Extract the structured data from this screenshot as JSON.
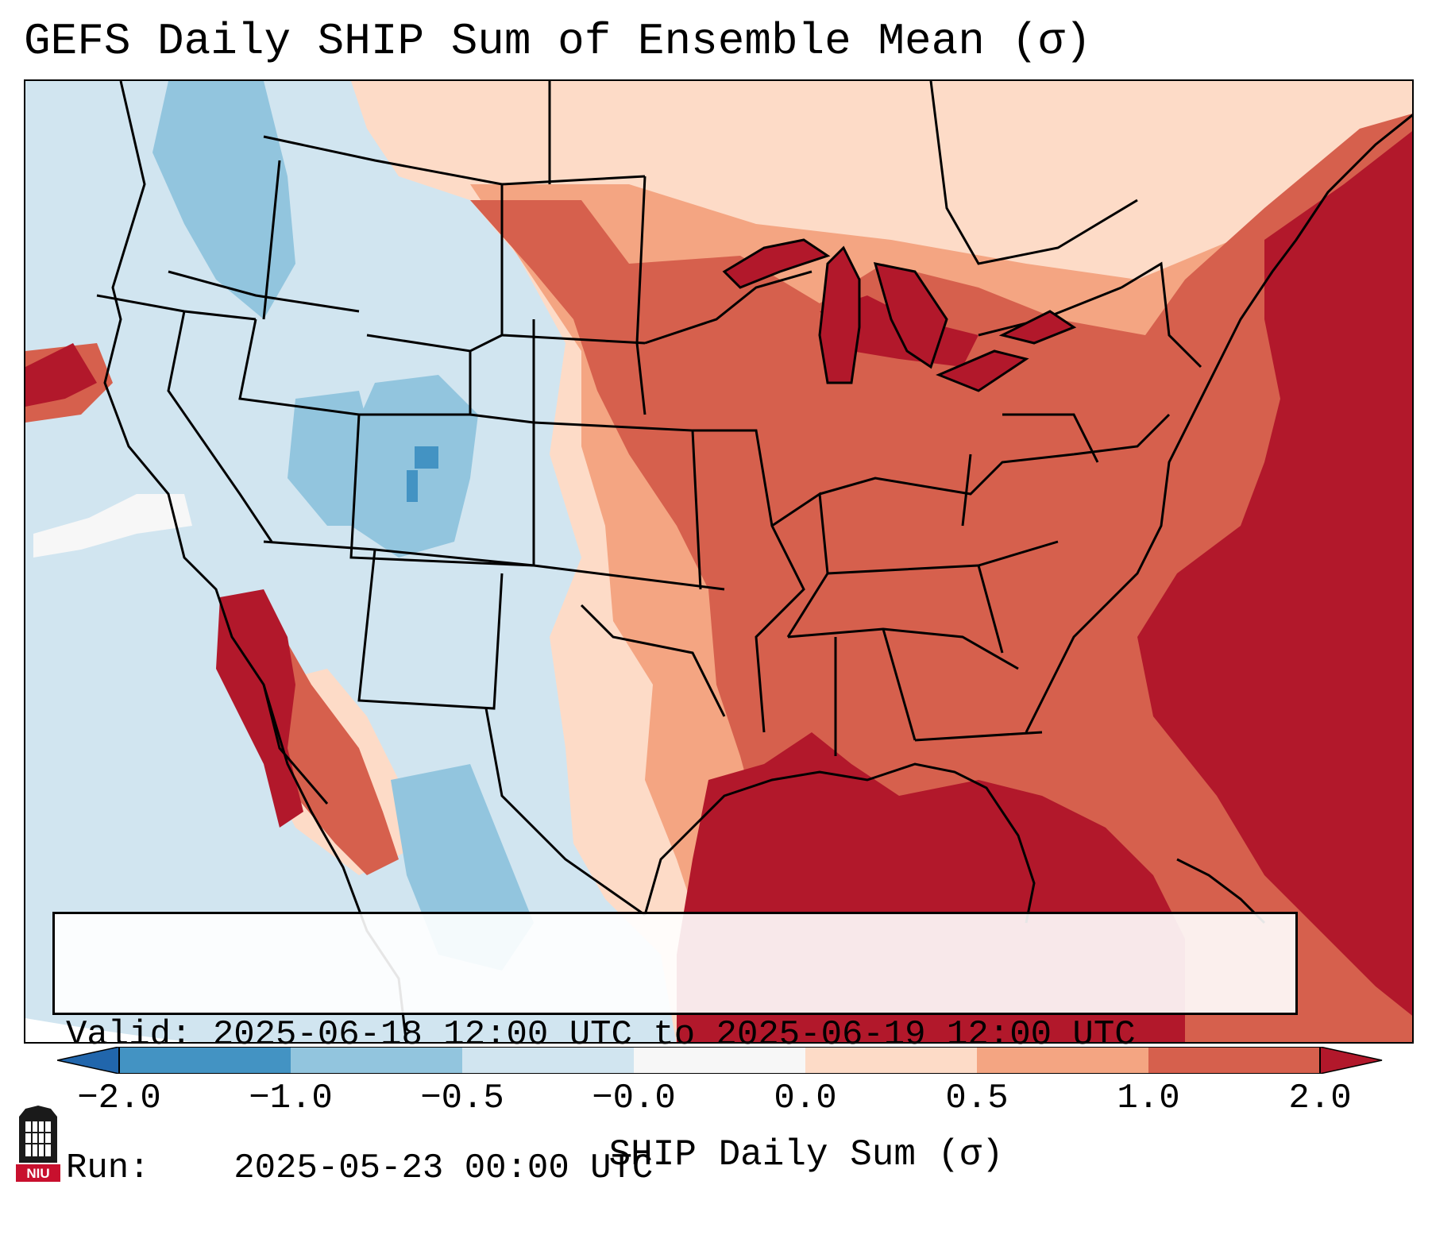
{
  "title": "GEFS Daily SHIP Sum of Ensemble Mean (σ)",
  "info": {
    "valid_label": "Valid:",
    "valid_value": "2025-06-18 12:00 UTC to 2025-06-19 12:00 UTC",
    "run_label": "Run:",
    "run_value": "2025-05-23 00:00 UTC"
  },
  "colorbar": {
    "title": "SHIP Daily Sum (σ)",
    "ticks": [
      "−2.0",
      "−1.0",
      "−0.5",
      "−0.0",
      "0.0",
      "0.5",
      "1.0",
      "2.0"
    ],
    "bins": [
      {
        "range": "< -2.0",
        "color": "#2166ac"
      },
      {
        "range": "-2.0 to -1.0",
        "color": "#4393c3"
      },
      {
        "range": "-1.0 to -0.5",
        "color": "#92c5de"
      },
      {
        "range": "-0.5 to -0.0",
        "color": "#d1e5f0"
      },
      {
        "range": "-0.0 to 0.0",
        "color": "#f7f7f7"
      },
      {
        "range": "0.0 to 0.5",
        "color": "#fddbc7"
      },
      {
        "range": "0.5 to 1.0",
        "color": "#f4a582"
      },
      {
        "range": "1.0 to 2.0",
        "color": "#d6604d"
      },
      {
        "range": "> 2.0",
        "color": "#b2182b"
      }
    ]
  },
  "logo": {
    "text": "NIU",
    "color": "#c8102e"
  }
}
